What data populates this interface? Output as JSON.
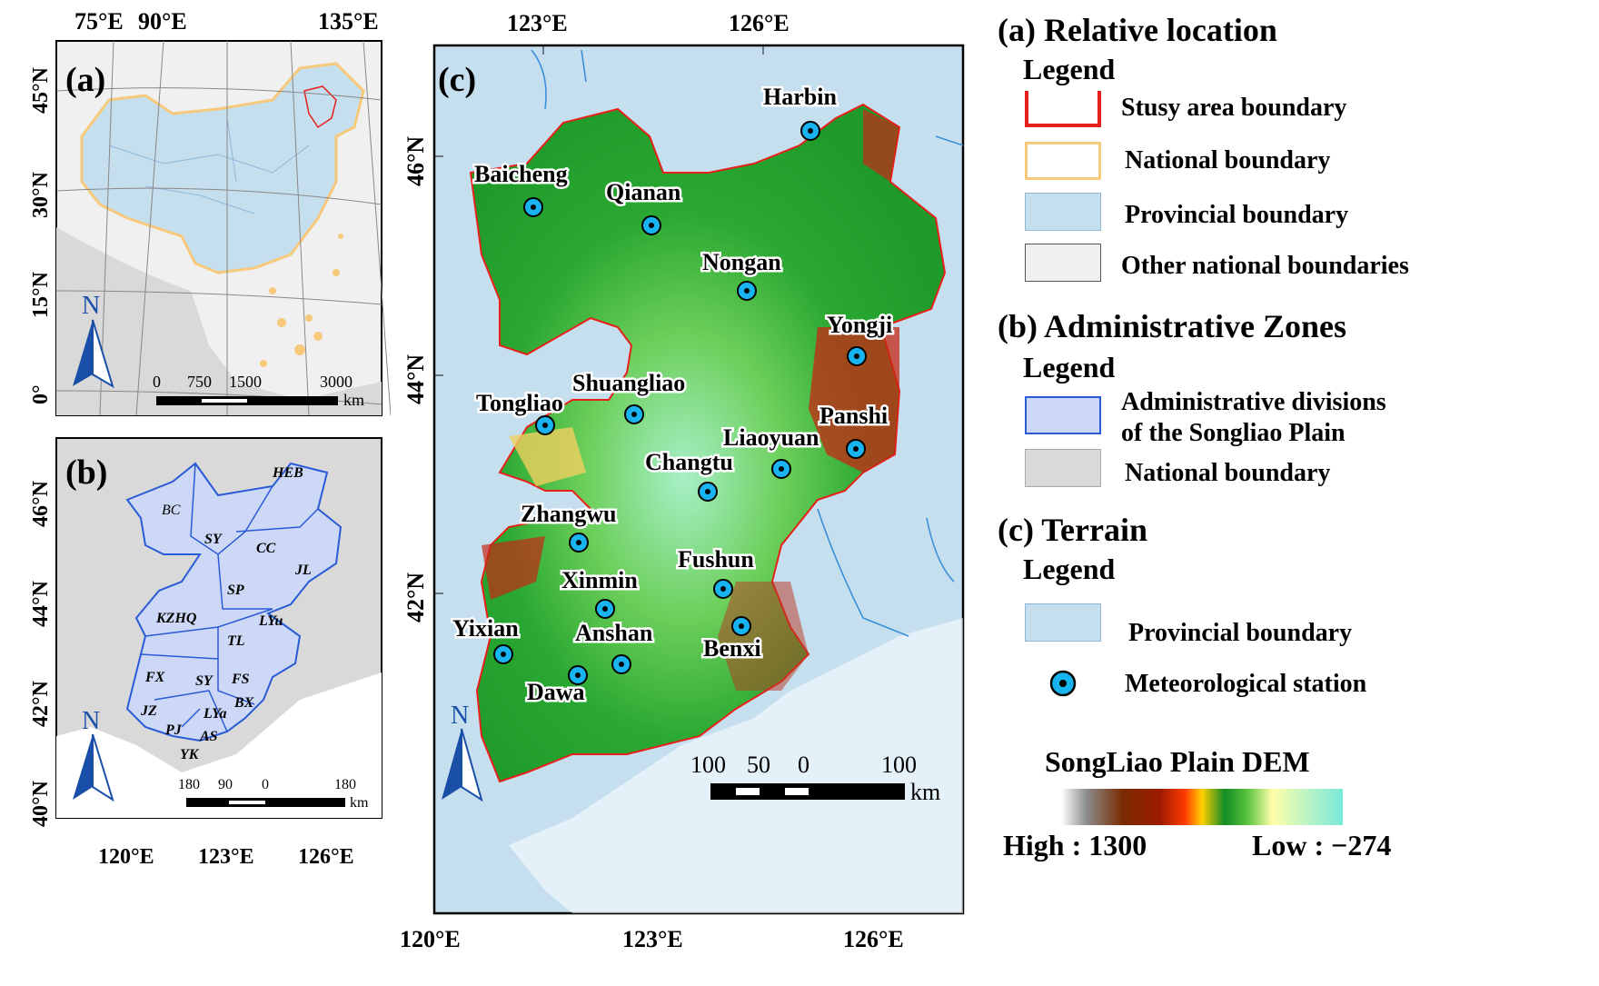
{
  "panel_a": {
    "label": "(a)",
    "lon_ticks": [
      "75°E",
      "90°E",
      "135°E"
    ],
    "lat_ticks": [
      "45°N",
      "30°N",
      "15°N",
      "0°"
    ],
    "north": "N",
    "scale_ticks": [
      "0",
      "750",
      "1500",
      "3000"
    ],
    "scale_unit": "km"
  },
  "panel_b": {
    "label": "(b)",
    "lon_ticks": [
      "120°E",
      "123°E",
      "126°E"
    ],
    "lat_ticks": [
      "46°N",
      "44°N",
      "42°N",
      "40°N"
    ],
    "north": "N",
    "scale_ticks": [
      "180",
      "90",
      "0",
      "180"
    ],
    "scale_unit": "km",
    "zones": [
      "HEB",
      "BC",
      "SY",
      "CC",
      "JL",
      "SP",
      "KZHQ",
      "LYu",
      "TL",
      "FX",
      "SY",
      "FS",
      "BX",
      "JZ",
      "LYa",
      "PJ",
      "AS",
      "YK"
    ]
  },
  "panel_c": {
    "label": "(c)",
    "lon_ticks_top": [
      "123°E",
      "126°E"
    ],
    "lon_ticks_bottom": [
      "120°E",
      "123°E",
      "126°E"
    ],
    "lat_ticks": [
      "46°N",
      "44°N",
      "42°N"
    ],
    "north": "N",
    "scale_ticks": [
      "100",
      "50",
      "0",
      "100"
    ],
    "scale_unit": "km",
    "stations": [
      "Harbin",
      "Baicheng",
      "Qianan",
      "Nongan",
      "Yongji",
      "Shuangliao",
      "Tongliao",
      "Panshi",
      "Liaoyuan",
      "Changtu",
      "Zhangwu",
      "Fushun",
      "Xinmin",
      "Yixian",
      "Anshan",
      "Benxi",
      "Dawa"
    ]
  },
  "legend": {
    "a_title": "(a)  Relative location",
    "a_legend": "Legend",
    "a_items": [
      "Stusy area boundary",
      "National boundary",
      "Provincial boundary",
      "Other national boundaries"
    ],
    "b_title": "(b)  Administrative Zones",
    "b_legend": "Legend",
    "b_item1_line1": "Administrative divisions",
    "b_item1_line2": "of the Songliao Plain",
    "b_item2": "National boundary",
    "c_title": "(c)  Terrain",
    "c_legend": "Legend",
    "c_item1": "Provincial boundary",
    "c_item2": "Meteorological station",
    "dem_title": "SongLiao Plain DEM",
    "dem_high": "High : 1300",
    "dem_low": "Low : −274"
  },
  "colors": {
    "study_area": "#e8201a",
    "national": "#f7c97a",
    "provincial": "#c6dfef",
    "zones_fill": "#cdd8f7",
    "zones_line": "#2a5bd6",
    "station": "#18b4f0",
    "north_arrow": "#1a4fa8"
  }
}
